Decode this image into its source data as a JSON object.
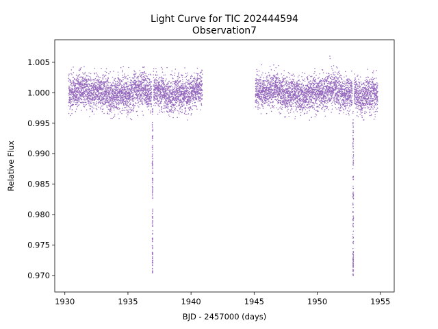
{
  "chart_data": {
    "type": "scatter",
    "title": "Light Curve for TIC 202444594",
    "subtitle": "Observation7",
    "xlabel": "BJD - 2457000 (days)",
    "ylabel": "Relative Flux",
    "xlim": [
      1929.2,
      1956.1
    ],
    "ylim": [
      0.9673,
      1.0087
    ],
    "x_ticks": [
      1930,
      1935,
      1940,
      1945,
      1950,
      1955
    ],
    "x_tick_labels": [
      "1930",
      "1935",
      "1940",
      "1945",
      "1950",
      "1955"
    ],
    "y_ticks": [
      0.97,
      0.975,
      0.98,
      0.985,
      0.99,
      0.995,
      1.0,
      1.005
    ],
    "y_tick_labels": [
      "0.970",
      "0.975",
      "0.980",
      "0.985",
      "0.990",
      "0.995",
      "1.000",
      "1.005"
    ],
    "grid": false,
    "legend": "none",
    "marker_color": "#9467bd",
    "segments": [
      {
        "x_range": [
          1930.3,
          1940.9
        ],
        "baseline": 1.0,
        "scatter": 0.0014
      },
      {
        "x_range": [
          1945.1,
          1954.8
        ],
        "baseline": 1.0,
        "scatter": 0.0014
      }
    ],
    "transits": [
      {
        "center": 1936.95,
        "depth_min": 0.97
      },
      {
        "center": 1952.85,
        "depth_min": 0.97
      }
    ],
    "data_gap": [
      1940.9,
      1945.1
    ],
    "highest_point": {
      "x": 1951.0,
      "y": 1.006
    }
  }
}
